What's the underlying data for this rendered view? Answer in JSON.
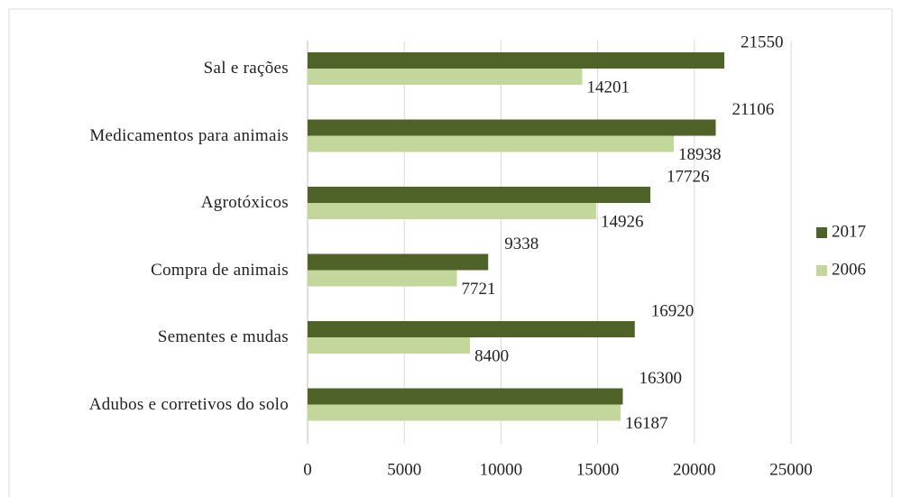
{
  "chart_data": {
    "type": "bar",
    "orientation": "horizontal",
    "categories": [
      "Sal e rações",
      "Medicamentos para animais",
      "Agrotóxicos",
      "Compra de animais",
      "Sementes e mudas",
      "Adubos e corretivos do solo"
    ],
    "series": [
      {
        "name": "2017",
        "color": "#4f6228",
        "values": [
          21550,
          21106,
          17726,
          9338,
          16920,
          16300
        ]
      },
      {
        "name": "2006",
        "color": "#c3d69b",
        "values": [
          14201,
          18938,
          14926,
          7721,
          8400,
          16187
        ]
      }
    ],
    "xlim": [
      0,
      25000
    ],
    "xticks": [
      0,
      5000,
      10000,
      15000,
      20000,
      25000
    ],
    "grid": true,
    "legend": "right"
  }
}
